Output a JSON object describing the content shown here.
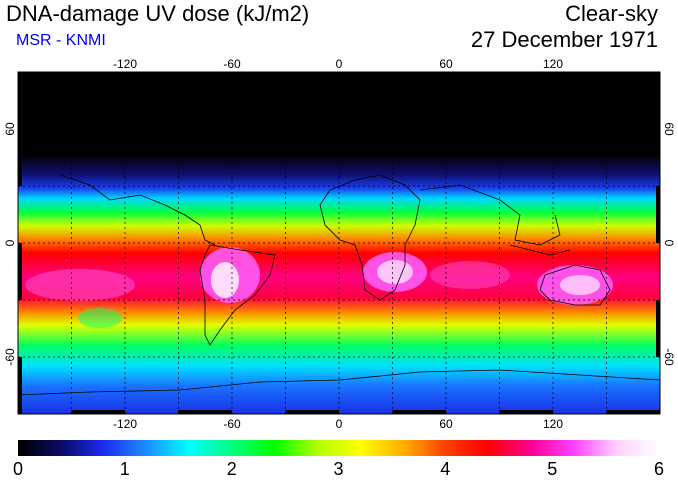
{
  "header": {
    "title": "DNA-damage UV dose (kJ/m2)",
    "source": "MSR - KNMI",
    "condition": "Clear-sky",
    "date": "27 December 1971"
  },
  "map": {
    "lon_ticks": [
      "-120",
      "-60",
      "0",
      "60",
      "120"
    ],
    "lat_ticks": [
      "60",
      "0",
      "-60"
    ],
    "projection": "equirectangular"
  },
  "colorbar": {
    "min": 0,
    "max": 6,
    "tick_labels": [
      "0",
      "1",
      "2",
      "3",
      "4",
      "5",
      "6"
    ],
    "colors": [
      "#000000",
      "#0a0a60",
      "#1a2cf0",
      "#1e8cff",
      "#00ffff",
      "#00ff80",
      "#00ff00",
      "#b0ff00",
      "#ffff00",
      "#ffb000",
      "#ff4000",
      "#ff0000",
      "#ff0090",
      "#ff40ff",
      "#ffd0ff",
      "#ffffff"
    ]
  }
}
